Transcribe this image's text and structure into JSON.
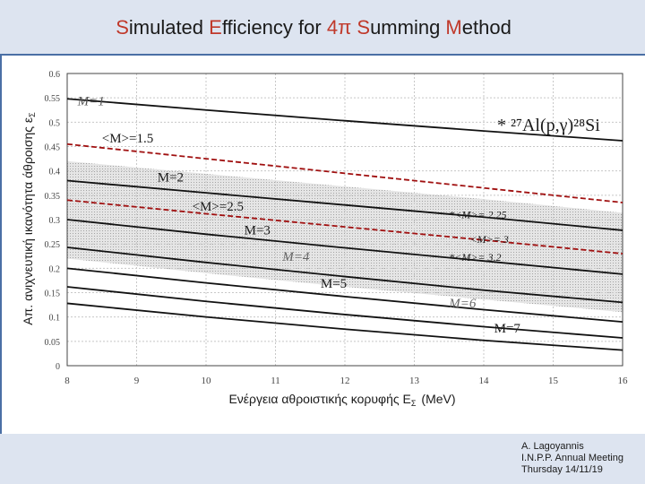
{
  "slide": {
    "title_parts": [
      {
        "text": "S",
        "hl": true
      },
      {
        "text": "imulated ",
        "hl": false
      },
      {
        "text": "E",
        "hl": true
      },
      {
        "text": "fficiency for ",
        "hl": false
      },
      {
        "text": "4π",
        "hl": true
      },
      {
        "text": " ",
        "hl": false
      },
      {
        "text": "S",
        "hl": true
      },
      {
        "text": "umming ",
        "hl": false
      },
      {
        "text": "M",
        "hl": true
      },
      {
        "text": "ethod",
        "hl": false
      }
    ],
    "credit": [
      "A. Lagoyannis",
      "I.N.P.P. Annual Meeting",
      "Thursday 14/11/19"
    ]
  },
  "colors": {
    "highlight": "#c0392b",
    "band": "#dde4f0",
    "rule": "#4a6fa5",
    "red_dashed": "#a01010",
    "shade": "#d0d0d0"
  },
  "chart_data": {
    "type": "line",
    "xlabel": "Ενέργεια αθροιστικής κορυφής E",
    "xlabel_sub": "Σ",
    "xlabel_unit": "(MeV)",
    "ylabel": "Απ. ανιχνευτική ικανότητα άθροισης ε",
    "ylabel_sub": "Σ",
    "xlim": [
      8,
      16
    ],
    "ylim": [
      0,
      0.6
    ],
    "xticks": [
      8,
      9,
      10,
      11,
      12,
      13,
      14,
      15,
      16
    ],
    "yticks": [
      "0",
      "0.05",
      "0.1",
      "0.15",
      "0.2",
      "0.25",
      "0.3",
      "0.35",
      "0.4",
      "0.45",
      "0.5",
      "0.55",
      "0.6"
    ],
    "grid": true,
    "reaction_label": "* ²⁷Al(p,γ)²⁸Si",
    "series": [
      {
        "name": "M=1",
        "x": [
          8,
          10,
          12,
          14,
          16
        ],
        "y": [
          0.548,
          0.525,
          0.503,
          0.482,
          0.462
        ],
        "style": "solid"
      },
      {
        "name": "<M>=1.5",
        "x": [
          8,
          10,
          12,
          14,
          16
        ],
        "y": [
          0.455,
          0.425,
          0.395,
          0.365,
          0.335
        ],
        "style": "red-dashed"
      },
      {
        "name": "M=2",
        "x": [
          8,
          10,
          12,
          14,
          16
        ],
        "y": [
          0.38,
          0.355,
          0.33,
          0.305,
          0.278
        ],
        "style": "solid"
      },
      {
        "name": "<M>=2.5",
        "x": [
          8,
          10,
          12,
          14,
          16
        ],
        "y": [
          0.34,
          0.312,
          0.285,
          0.258,
          0.23
        ],
        "style": "red-dashed"
      },
      {
        "name": "M=3",
        "x": [
          8,
          10,
          12,
          14,
          16
        ],
        "y": [
          0.3,
          0.27,
          0.242,
          0.215,
          0.188
        ],
        "style": "solid"
      },
      {
        "name": "M=4",
        "x": [
          8,
          10,
          12,
          14,
          16
        ],
        "y": [
          0.243,
          0.212,
          0.183,
          0.155,
          0.13
        ],
        "style": "solid"
      },
      {
        "name": "M=5",
        "x": [
          8,
          10,
          12,
          14,
          16
        ],
        "y": [
          0.2,
          0.17,
          0.142,
          0.115,
          0.09
        ],
        "style": "solid"
      },
      {
        "name": "M=6",
        "x": [
          8,
          10,
          12,
          14,
          16
        ],
        "y": [
          0.162,
          0.132,
          0.105,
          0.08,
          0.057
        ],
        "style": "solid"
      },
      {
        "name": "M=7",
        "x": [
          8,
          10,
          12,
          14,
          16
        ],
        "y": [
          0.128,
          0.1,
          0.075,
          0.052,
          0.032
        ],
        "style": "solid"
      }
    ],
    "bands": [
      {
        "name": "band-1",
        "x": [
          8,
          10,
          12,
          14,
          16
        ],
        "upper": [
          0.42,
          0.394,
          0.368,
          0.342,
          0.314
        ],
        "lower": [
          0.335,
          0.308,
          0.282,
          0.256,
          0.228
        ]
      },
      {
        "name": "band-2",
        "x": [
          8,
          10,
          12,
          14,
          16
        ],
        "upper": [
          0.335,
          0.308,
          0.282,
          0.256,
          0.228
        ],
        "lower": [
          0.22,
          0.19,
          0.162,
          0.136,
          0.11
        ]
      }
    ],
    "points": [
      {
        "label": "*<M>= 2.25",
        "x": 13.5,
        "y": 0.303
      },
      {
        "label": "<M>= 3",
        "x": 13.8,
        "y": 0.252
      },
      {
        "label": "*<M>= 3.2",
        "x": 13.5,
        "y": 0.215
      }
    ],
    "curve_labels": [
      {
        "text": "M=1",
        "x": 8.15,
        "y": 0.535,
        "color": "#555555",
        "italic": true
      },
      {
        "text": "<M>=1.5",
        "x": 8.5,
        "y": 0.458,
        "color": "#1a1a1a",
        "italic": false
      },
      {
        "text": "M=2",
        "x": 9.3,
        "y": 0.378,
        "color": "#1a1a1a",
        "italic": false
      },
      {
        "text": "<M>=2.5",
        "x": 9.8,
        "y": 0.318,
        "color": "#1a1a1a",
        "italic": false
      },
      {
        "text": "M=3",
        "x": 10.55,
        "y": 0.27,
        "color": "#1a1a1a",
        "italic": false
      },
      {
        "text": "M=4",
        "x": 11.1,
        "y": 0.215,
        "color": "#666666",
        "italic": true
      },
      {
        "text": "M=5",
        "x": 11.65,
        "y": 0.16,
        "color": "#1a1a1a",
        "italic": false
      },
      {
        "text": "M=6",
        "x": 13.5,
        "y": 0.12,
        "color": "#666666",
        "italic": true
      },
      {
        "text": "M=7",
        "x": 14.15,
        "y": 0.068,
        "color": "#1a1a1a",
        "italic": false
      }
    ]
  }
}
